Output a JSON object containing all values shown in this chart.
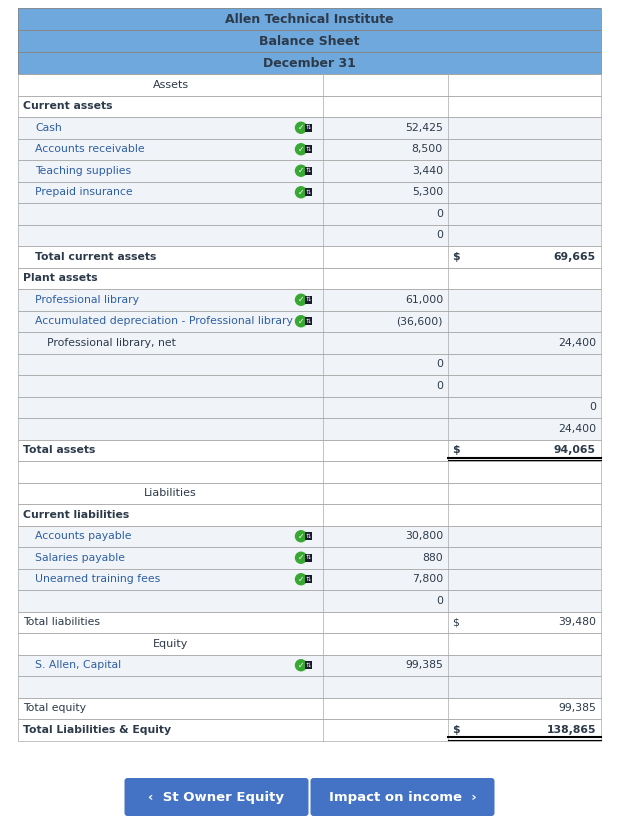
{
  "title1": "Allen Technical Institute",
  "title2": "Balance Sheet",
  "title3": "December 31",
  "header_bg": "#6fa8dc",
  "header_text": "#2d3a4a",
  "border_color": "#aaaaaa",
  "button_color": "#4472c4",
  "button_text": "#ffffff",
  "rows": [
    {
      "label": "Assets",
      "col1": "",
      "col2": "",
      "indent": 0,
      "bold": false,
      "center": true,
      "bg": "#ffffff",
      "text_color": "#2d3a4a"
    },
    {
      "label": "Current assets",
      "col1": "",
      "col2": "",
      "indent": 0,
      "bold": true,
      "center": false,
      "bg": "#ffffff",
      "text_color": "#2d3a4a"
    },
    {
      "label": "Cash",
      "col1": "52,425",
      "col2": "",
      "indent": 1,
      "bold": false,
      "center": false,
      "bg": "#f0f4f8",
      "has_icon": true,
      "text_color": "#2e5fa3"
    },
    {
      "label": "Accounts receivable",
      "col1": "8,500",
      "col2": "",
      "indent": 1,
      "bold": false,
      "center": false,
      "bg": "#f0f4f8",
      "has_icon": true,
      "text_color": "#2e5fa3"
    },
    {
      "label": "Teaching supplies",
      "col1": "3,440",
      "col2": "",
      "indent": 1,
      "bold": false,
      "center": false,
      "bg": "#f0f4f8",
      "has_icon": true,
      "text_color": "#2e5fa3"
    },
    {
      "label": "Prepaid insurance",
      "col1": "5,300",
      "col2": "",
      "indent": 1,
      "bold": false,
      "center": false,
      "bg": "#f0f4f8",
      "has_icon": true,
      "text_color": "#2e5fa3"
    },
    {
      "label": "",
      "col1": "0",
      "col2": "",
      "indent": 1,
      "bold": false,
      "center": false,
      "bg": "#f0f4f8",
      "has_icon": false,
      "text_color": "#2d3a4a"
    },
    {
      "label": "",
      "col1": "0",
      "col2": "",
      "indent": 1,
      "bold": false,
      "center": false,
      "bg": "#f0f4f8",
      "has_icon": false,
      "text_color": "#2d3a4a"
    },
    {
      "label": "Total current assets",
      "col1": "",
      "col2": "S  69,665",
      "indent": 1,
      "bold": true,
      "center": false,
      "bg": "#ffffff",
      "text_color": "#2d3a4a"
    },
    {
      "label": "Plant assets",
      "col1": "",
      "col2": "",
      "indent": 0,
      "bold": true,
      "center": false,
      "bg": "#ffffff",
      "text_color": "#2d3a4a"
    },
    {
      "label": "Professional library",
      "col1": "61,000",
      "col2": "",
      "indent": 1,
      "bold": false,
      "center": false,
      "bg": "#f0f4f8",
      "has_icon": true,
      "text_color": "#2e5fa3"
    },
    {
      "label": "Accumulated depreciation - Professional library",
      "col1": "(36,600)",
      "col2": "",
      "indent": 1,
      "bold": false,
      "center": false,
      "bg": "#f0f4f8",
      "has_icon": true,
      "text_color": "#2e5fa3"
    },
    {
      "label": "Professional library, net",
      "col1": "",
      "col2": "24,400",
      "indent": 2,
      "bold": false,
      "center": false,
      "bg": "#f0f4f8",
      "text_color": "#2d3a4a"
    },
    {
      "label": "",
      "col1": "0",
      "col2": "",
      "indent": 1,
      "bold": false,
      "center": false,
      "bg": "#f0f4f8",
      "has_icon": false,
      "text_color": "#2d3a4a"
    },
    {
      "label": "",
      "col1": "0",
      "col2": "",
      "indent": 1,
      "bold": false,
      "center": false,
      "bg": "#f0f4f8",
      "has_icon": false,
      "text_color": "#2d3a4a"
    },
    {
      "label": "",
      "col1": "",
      "col2": "0",
      "indent": 1,
      "bold": false,
      "center": false,
      "bg": "#f0f4f8",
      "text_color": "#2d3a4a"
    },
    {
      "label": "",
      "col1": "",
      "col2": "24,400",
      "indent": 1,
      "bold": false,
      "center": false,
      "bg": "#f0f4f8",
      "text_color": "#2d3a4a"
    },
    {
      "label": "Total assets",
      "col1": "",
      "col2": "S  94,065",
      "indent": 0,
      "bold": true,
      "center": false,
      "bg": "#ffffff",
      "text_color": "#2d3a4a",
      "double_underline": true
    },
    {
      "label": "",
      "col1": "",
      "col2": "",
      "indent": 0,
      "bold": false,
      "center": false,
      "bg": "#ffffff",
      "text_color": "#2d3a4a"
    },
    {
      "label": "Liabilities",
      "col1": "",
      "col2": "",
      "indent": 0,
      "bold": false,
      "center": true,
      "bg": "#ffffff",
      "text_color": "#2d3a4a"
    },
    {
      "label": "Current liabilities",
      "col1": "",
      "col2": "",
      "indent": 0,
      "bold": true,
      "center": false,
      "bg": "#ffffff",
      "text_color": "#2d3a4a"
    },
    {
      "label": "Accounts payable",
      "col1": "30,800",
      "col2": "",
      "indent": 1,
      "bold": false,
      "center": false,
      "bg": "#f0f4f8",
      "has_icon": true,
      "text_color": "#2e5fa3"
    },
    {
      "label": "Salaries payable",
      "col1": "880",
      "col2": "",
      "indent": 1,
      "bold": false,
      "center": false,
      "bg": "#f0f4f8",
      "has_icon": true,
      "text_color": "#2e5fa3"
    },
    {
      "label": "Unearned training fees",
      "col1": "7,800",
      "col2": "",
      "indent": 1,
      "bold": false,
      "center": false,
      "bg": "#f0f4f8",
      "has_icon": true,
      "text_color": "#2e5fa3"
    },
    {
      "label": "",
      "col1": "0",
      "col2": "",
      "indent": 1,
      "bold": false,
      "center": false,
      "bg": "#f0f4f8",
      "has_icon": false,
      "text_color": "#2d3a4a"
    },
    {
      "label": "Total liabilities",
      "col1": "",
      "col2": "S  39,480",
      "indent": 0,
      "bold": false,
      "center": false,
      "bg": "#ffffff",
      "text_color": "#2d3a4a"
    },
    {
      "label": "Equity",
      "col1": "",
      "col2": "",
      "indent": 0,
      "bold": false,
      "center": true,
      "bg": "#ffffff",
      "text_color": "#2d3a4a"
    },
    {
      "label": "S. Allen, Capital",
      "col1": "99,385",
      "col2": "",
      "indent": 1,
      "bold": false,
      "center": false,
      "bg": "#f0f4f8",
      "has_icon": true,
      "text_color": "#2e5fa3"
    },
    {
      "label": "",
      "col1": "",
      "col2": "",
      "indent": 1,
      "bold": false,
      "center": false,
      "bg": "#f0f4f8",
      "text_color": "#2d3a4a"
    },
    {
      "label": "Total equity",
      "col1": "",
      "col2": "99,385",
      "indent": 0,
      "bold": false,
      "center": false,
      "bg": "#ffffff",
      "text_color": "#2d3a4a"
    },
    {
      "label": "Total Liabilities & Equity",
      "col1": "",
      "col2": "S  138,865",
      "indent": 0,
      "bold": true,
      "center": false,
      "bg": "#ffffff",
      "text_color": "#2d3a4a",
      "double_underline": true
    }
  ],
  "btn1_text": "‹  St Owner Equity",
  "btn2_text": "Impact on income  ›"
}
